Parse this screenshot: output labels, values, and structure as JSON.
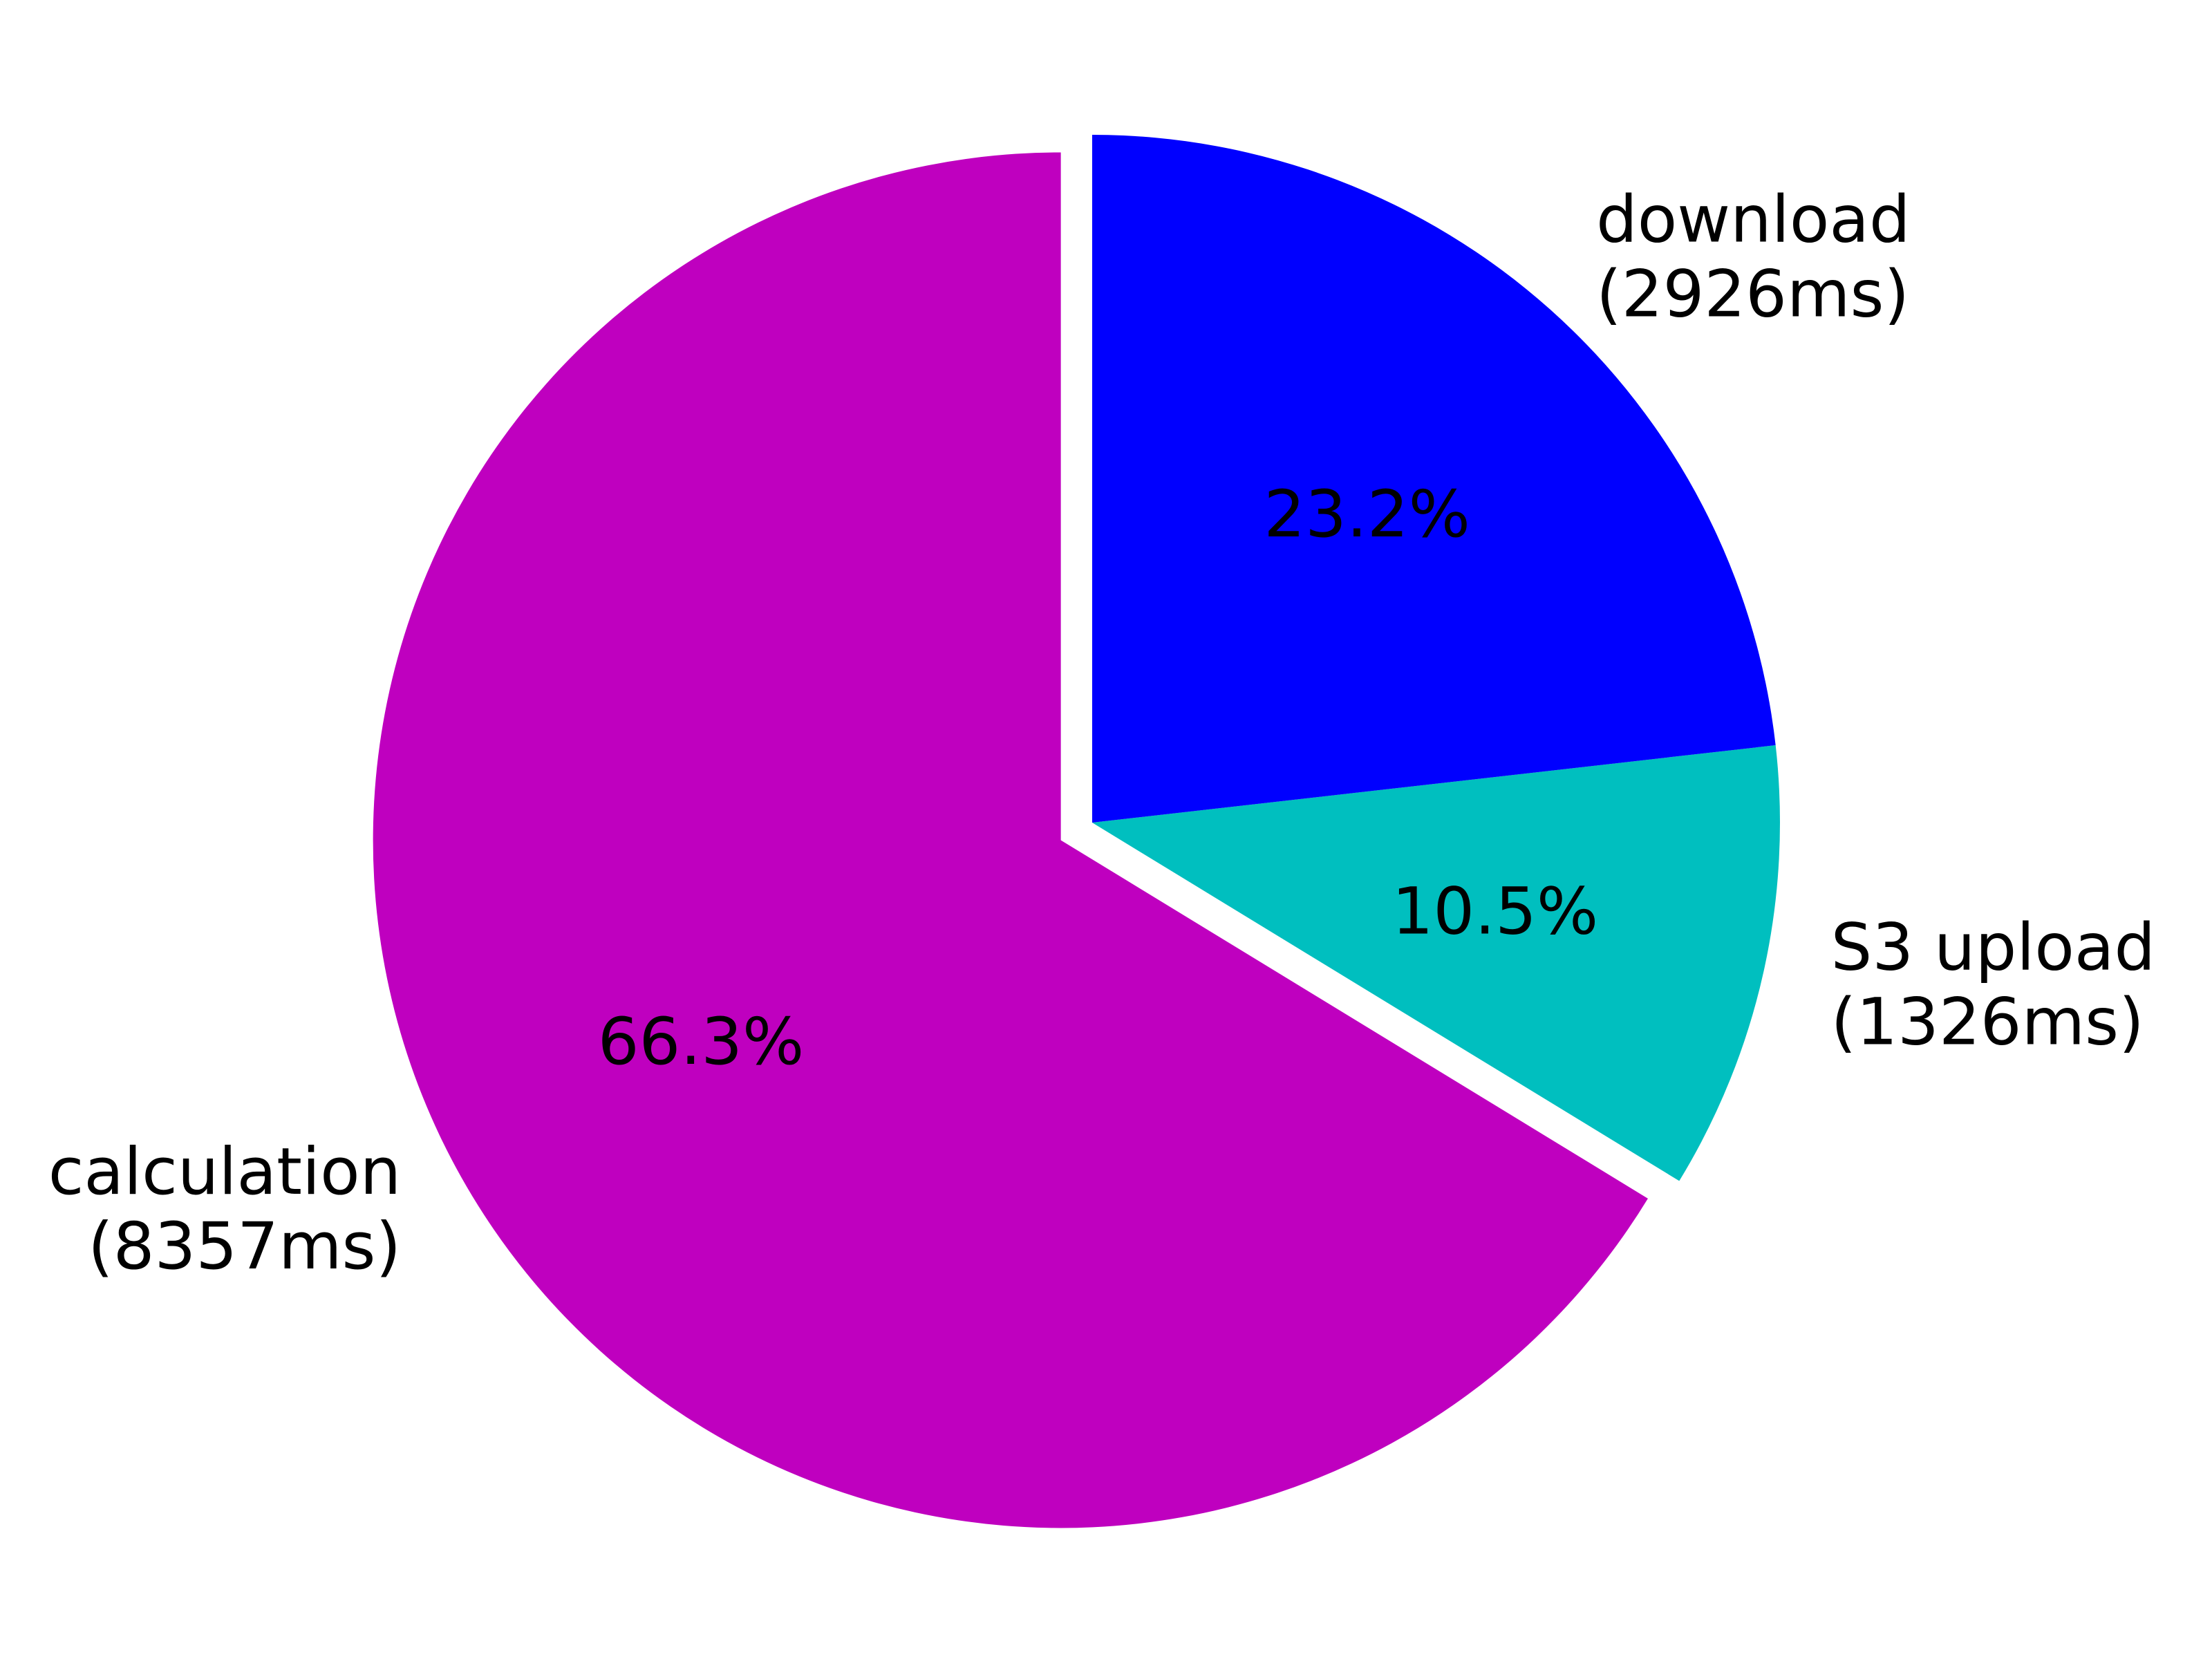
{
  "chart_data": {
    "type": "pie",
    "start_angle_deg": 90,
    "direction": "counterclockwise",
    "slices": [
      {
        "label": "calculation",
        "value_text": "(8357ms)",
        "value": 8357,
        "percent_text": "66.3%",
        "color": "#bf00bf",
        "exploded": true
      },
      {
        "label": "S3 upload",
        "value_text": "(1326ms)",
        "value": 1326,
        "percent_text": "10.5%",
        "color": "#00bfbf",
        "exploded": false
      },
      {
        "label": "download",
        "value_text": "(2926ms)",
        "value": 2926,
        "percent_text": "23.2%",
        "color": "#0000ff",
        "exploded": false
      }
    ]
  }
}
